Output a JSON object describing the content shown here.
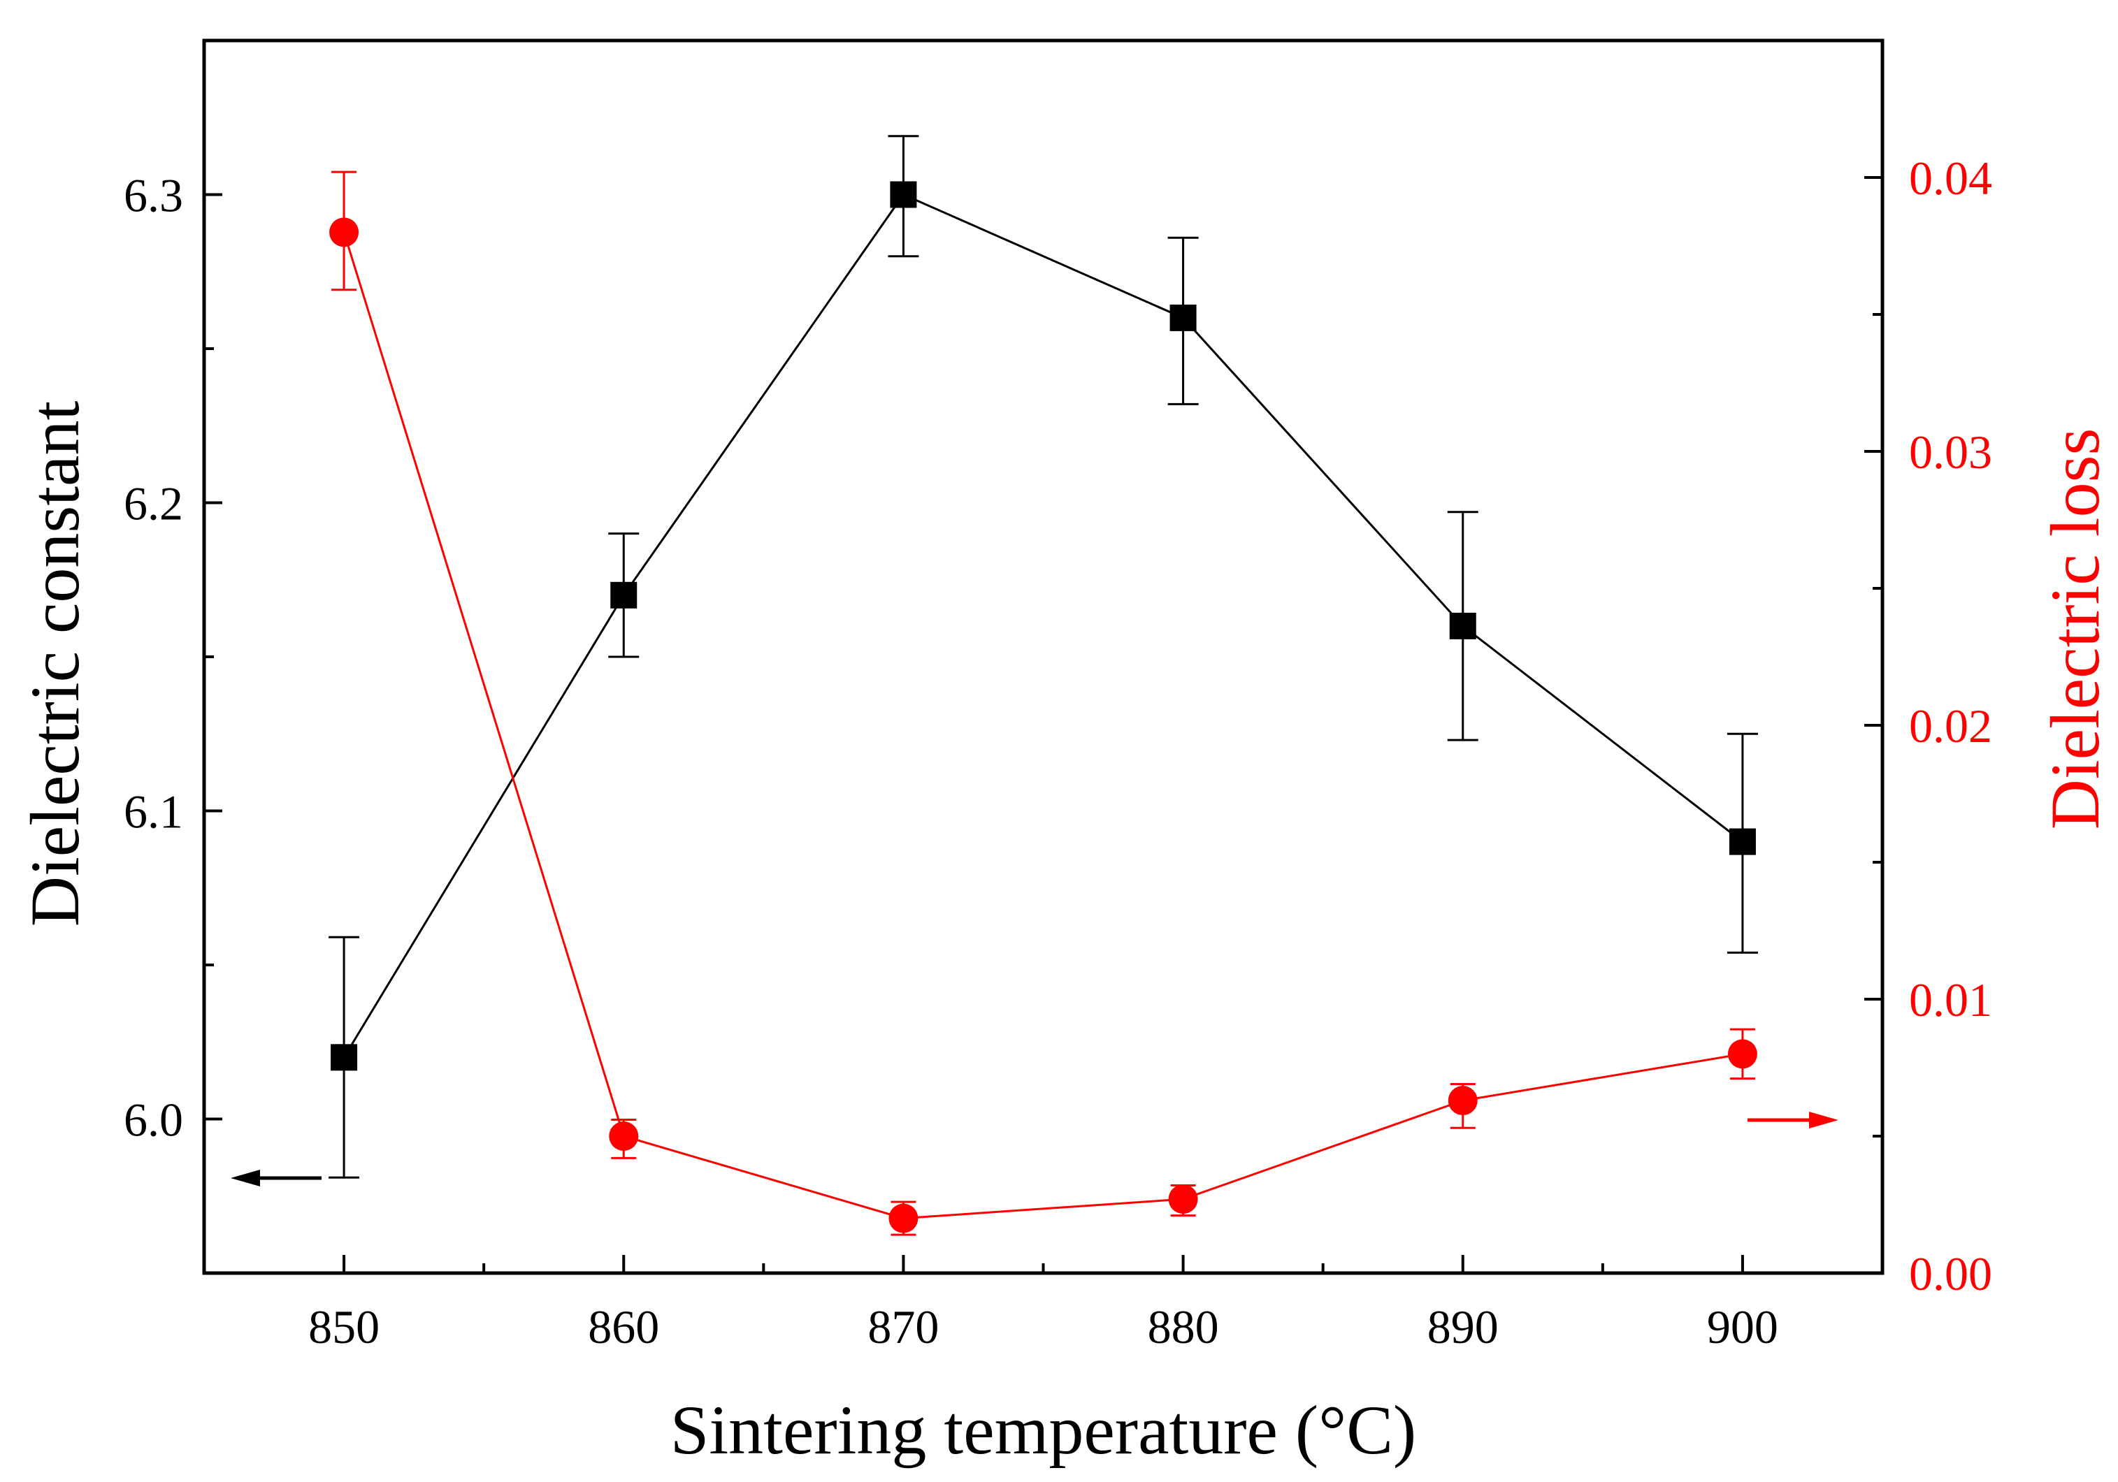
{
  "chart_data": {
    "type": "line",
    "title": "",
    "xlabel": "Sintering temperature (°C)",
    "ylabel_left": "Dielectric constant",
    "ylabel_right": "Dielectric loss",
    "xlim": [
      845,
      905
    ],
    "ylim_left": [
      5.95,
      6.35
    ],
    "ylim_right": [
      0.0,
      0.045
    ],
    "x_ticks": [
      850,
      860,
      870,
      880,
      890,
      900
    ],
    "x_tick_labels": [
      "850",
      "860",
      "870",
      "880",
      "890",
      "900"
    ],
    "y_left_ticks": [
      6.0,
      6.1,
      6.2,
      6.3
    ],
    "y_left_tick_labels": [
      "6.0",
      "6.1",
      "6.2",
      "6.3"
    ],
    "y_right_ticks": [
      0.0,
      0.01,
      0.02,
      0.03,
      0.04
    ],
    "y_right_tick_labels": [
      "0.00",
      "0.01",
      "0.02",
      "0.03",
      "0.04"
    ],
    "grid": false,
    "legend": "none",
    "series": [
      {
        "axis": "left",
        "marker": "square",
        "color": "#000000",
        "x": [
          850,
          860,
          870,
          880,
          890,
          900
        ],
        "y": [
          6.02,
          6.17,
          6.3,
          6.26,
          6.16,
          6.09
        ],
        "yerr_upper": [
          6.059,
          6.19,
          6.319,
          6.286,
          6.197,
          6.125
        ],
        "yerr_lower": [
          5.981,
          6.15,
          6.28,
          6.232,
          6.123,
          6.054
        ]
      },
      {
        "axis": "right",
        "marker": "circle",
        "color": "#ff0000",
        "x": [
          850,
          860,
          870,
          880,
          890,
          900
        ],
        "y": [
          0.038,
          0.005,
          0.002,
          0.0027,
          0.0063,
          0.008
        ],
        "yerr_upper": [
          0.0402,
          0.0056,
          0.0026,
          0.0032,
          0.0069,
          0.0089
        ],
        "yerr_lower": [
          0.0359,
          0.0042,
          0.0014,
          0.0021,
          0.0053,
          0.0071
        ]
      }
    ],
    "annotations": [
      {
        "type": "arrow",
        "direction": "left",
        "axis": "left",
        "color": "#000000"
      },
      {
        "type": "arrow",
        "direction": "right",
        "axis": "right",
        "color": "#ff0000"
      }
    ]
  }
}
